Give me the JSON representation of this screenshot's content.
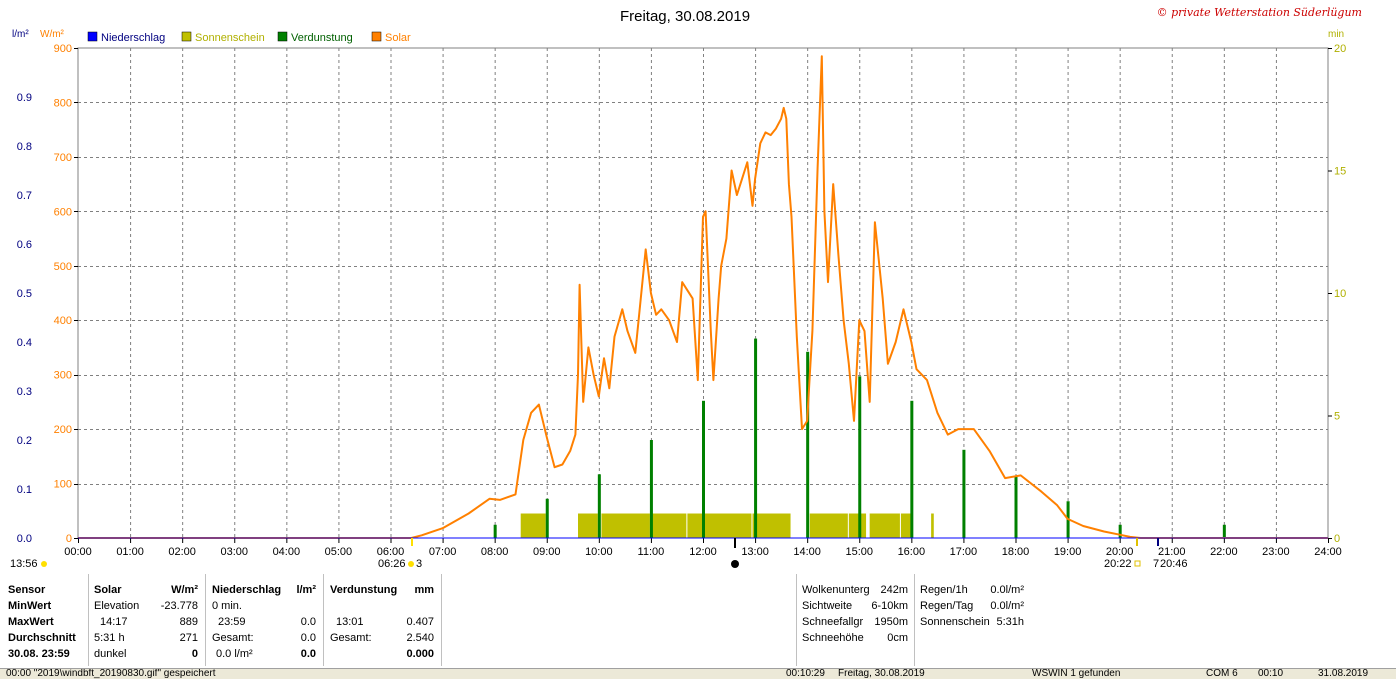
{
  "chart_data": {
    "type": "line",
    "title": "Freitag, 30.08.2019",
    "copyright": "© private Wetterstation Süderlügum",
    "left_axis_units": [
      "l/m²",
      "W/m²"
    ],
    "right_axis_unit": "min",
    "legend": [
      {
        "name": "Niederschlag",
        "color": "#0000ff"
      },
      {
        "name": "Sonnenschein",
        "color": "#c0c000"
      },
      {
        "name": "Verdunstung",
        "color": "#008000"
      },
      {
        "name": "Solar",
        "color": "#ff8000"
      }
    ],
    "x_ticks": [
      "00:00",
      "01:00",
      "02:00",
      "03:00",
      "04:00",
      "05:00",
      "06:00",
      "07:00",
      "08:00",
      "09:00",
      "10:00",
      "11:00",
      "12:00",
      "13:00",
      "14:00",
      "15:00",
      "16:00",
      "17:00",
      "18:00",
      "19:00",
      "20:00",
      "21:00",
      "22:00",
      "23:00",
      "24:00"
    ],
    "solar_ylim": [
      0,
      900
    ],
    "solar_ticks": [
      "0",
      "100",
      "200",
      "300",
      "400",
      "500",
      "600",
      "700",
      "800",
      "900"
    ],
    "precip_ylim": [
      0,
      1.0
    ],
    "precip_ticks": [
      "0.0",
      "0.1",
      "0.2",
      "0.3",
      "0.4",
      "0.5",
      "0.6",
      "0.7",
      "0.8",
      "0.9"
    ],
    "sun_ylim": [
      0,
      20
    ],
    "sun_ticks": [
      "0",
      "5",
      "10",
      "15",
      "20"
    ],
    "solar_series": {
      "name": "Solar",
      "color": "#ff8000",
      "points": [
        [
          0,
          0
        ],
        [
          6.4,
          0
        ],
        [
          6.6,
          5
        ],
        [
          7.0,
          18
        ],
        [
          7.5,
          45
        ],
        [
          7.9,
          72
        ],
        [
          8.1,
          70
        ],
        [
          8.4,
          80
        ],
        [
          8.55,
          180
        ],
        [
          8.7,
          230
        ],
        [
          8.85,
          245
        ],
        [
          9.0,
          185
        ],
        [
          9.15,
          130
        ],
        [
          9.3,
          135
        ],
        [
          9.45,
          160
        ],
        [
          9.55,
          190
        ],
        [
          9.6,
          300
        ],
        [
          9.63,
          465
        ],
        [
          9.7,
          250
        ],
        [
          9.8,
          350
        ],
        [
          9.9,
          300
        ],
        [
          10.0,
          260
        ],
        [
          10.1,
          330
        ],
        [
          10.2,
          275
        ],
        [
          10.3,
          370
        ],
        [
          10.45,
          420
        ],
        [
          10.55,
          380
        ],
        [
          10.7,
          340
        ],
        [
          10.9,
          530
        ],
        [
          11.0,
          450
        ],
        [
          11.1,
          410
        ],
        [
          11.2,
          420
        ],
        [
          11.35,
          400
        ],
        [
          11.5,
          360
        ],
        [
          11.6,
          470
        ],
        [
          11.7,
          455
        ],
        [
          11.8,
          440
        ],
        [
          11.9,
          290
        ],
        [
          12.0,
          590
        ],
        [
          12.05,
          600
        ],
        [
          12.15,
          380
        ],
        [
          12.2,
          290
        ],
        [
          12.3,
          440
        ],
        [
          12.35,
          500
        ],
        [
          12.45,
          550
        ],
        [
          12.55,
          675
        ],
        [
          12.65,
          630
        ],
        [
          12.75,
          660
        ],
        [
          12.85,
          690
        ],
        [
          12.95,
          610
        ],
        [
          13.0,
          660
        ],
        [
          13.1,
          725
        ],
        [
          13.2,
          745
        ],
        [
          13.3,
          740
        ],
        [
          13.4,
          752
        ],
        [
          13.5,
          770
        ],
        [
          13.55,
          790
        ],
        [
          13.6,
          770
        ],
        [
          13.65,
          650
        ],
        [
          13.7,
          590
        ],
        [
          13.8,
          370
        ],
        [
          13.9,
          200
        ],
        [
          14.0,
          215
        ],
        [
          14.05,
          300
        ],
        [
          14.1,
          380
        ],
        [
          14.2,
          680
        ],
        [
          14.28,
          885
        ],
        [
          14.33,
          600
        ],
        [
          14.4,
          470
        ],
        [
          14.5,
          650
        ],
        [
          14.6,
          520
        ],
        [
          14.7,
          400
        ],
        [
          14.8,
          320
        ],
        [
          14.9,
          215
        ],
        [
          15.0,
          400
        ],
        [
          15.1,
          380
        ],
        [
          15.2,
          250
        ],
        [
          15.3,
          580
        ],
        [
          15.45,
          440
        ],
        [
          15.55,
          320
        ],
        [
          15.7,
          360
        ],
        [
          15.85,
          420
        ],
        [
          16.0,
          360
        ],
        [
          16.1,
          310
        ],
        [
          16.3,
          290
        ],
        [
          16.5,
          230
        ],
        [
          16.7,
          190
        ],
        [
          16.9,
          200
        ],
        [
          17.2,
          200
        ],
        [
          17.5,
          160
        ],
        [
          17.8,
          110
        ],
        [
          18.1,
          115
        ],
        [
          18.5,
          85
        ],
        [
          18.8,
          60
        ],
        [
          19.0,
          35
        ],
        [
          19.3,
          22
        ],
        [
          19.7,
          12
        ],
        [
          20.0,
          6
        ],
        [
          20.2,
          2
        ],
        [
          20.4,
          0
        ],
        [
          24,
          0
        ]
      ]
    },
    "evaporation_bars": [
      {
        "time": 8.0,
        "value": 0.027
      },
      {
        "time": 9.0,
        "value": 0.08
      },
      {
        "time": 10.0,
        "value": 0.13
      },
      {
        "time": 11.0,
        "value": 0.2
      },
      {
        "time": 12.0,
        "value": 0.28
      },
      {
        "time": 13.0,
        "value": 0.407
      },
      {
        "time": 14.0,
        "value": 0.38
      },
      {
        "time": 15.0,
        "value": 0.33
      },
      {
        "time": 16.0,
        "value": 0.28
      },
      {
        "time": 17.0,
        "value": 0.18
      },
      {
        "time": 18.0,
        "value": 0.125
      },
      {
        "time": 19.0,
        "value": 0.075
      },
      {
        "time": 20.0,
        "value": 0.027
      },
      {
        "time": 22.0,
        "value": 0.027
      }
    ],
    "sunshine_blocks": [
      {
        "start": 8.5,
        "end": 9.0
      },
      {
        "start": 9.6,
        "end": 10.0
      },
      {
        "start": 10.05,
        "end": 11.0
      },
      {
        "start": 11.0,
        "end": 11.7
      },
      {
        "start": 11.7,
        "end": 12.95
      },
      {
        "start": 12.95,
        "end": 13.7
      },
      {
        "start": 14.05,
        "end": 14.8
      },
      {
        "start": 14.8,
        "end": 15.15
      },
      {
        "start": 15.2,
        "end": 15.8
      },
      {
        "start": 15.8,
        "end": 16.05
      },
      {
        "start": 16.38,
        "end": 16.45
      }
    ],
    "sunshine_level": 1.0,
    "markers": {
      "left_time": "13:56",
      "sunrise": "06:26",
      "sunrise_suffix": "3",
      "sunset": "20:22",
      "night": "20:46",
      "night_prefix": "7"
    }
  },
  "table": {
    "sensor": {
      "header": "Sensor",
      "rows": [
        "MinWert",
        "MaxWert",
        "Durchschnitt",
        "30.08. 23:59"
      ]
    },
    "solar": {
      "header": "Solar",
      "unit": "W/m²",
      "rows": [
        [
          "Elevation",
          "-23.778"
        ],
        [
          "14:17",
          "889"
        ],
        [
          "5:31 h",
          "271"
        ],
        [
          "dunkel",
          "0"
        ]
      ]
    },
    "precip": {
      "header": "Niederschlag",
      "unit": "l/m²",
      "rows": [
        [
          "0 min.",
          ""
        ],
        [
          "23:59",
          "0.0"
        ],
        [
          "Gesamt:",
          "0.0"
        ],
        [
          "0.0 l/m²",
          "0.0"
        ]
      ]
    },
    "evap": {
      "header": "Verdunstung",
      "unit": "mm",
      "rows": [
        [
          "",
          ""
        ],
        [
          "13:01",
          "0.407"
        ],
        [
          "Gesamt:",
          "2.540"
        ],
        [
          "",
          "0.000"
        ]
      ]
    },
    "clouds": [
      [
        "Wolkenunterg",
        "242m"
      ],
      [
        "Sichtweite",
        "6-10km"
      ],
      [
        "Schneefallgr",
        "1950m"
      ],
      [
        "Schneehöhe",
        "0cm"
      ]
    ],
    "rain": [
      [
        "Regen/1h",
        "0.0l/m²"
      ],
      [
        "Regen/Tag",
        "0.0l/m²"
      ],
      [
        "Sonnenschein",
        "5:31h"
      ]
    ]
  },
  "status": {
    "s1": "00:00 \"2019\\windbft_20190830.gif\" gespeichert",
    "s2": "00:10:29",
    "s3": "Freitag, 30.08.2019",
    "s4": "WSWIN 1 gefunden",
    "s5": "COM 6",
    "s6": "00:10",
    "s7": "31.08.2019"
  }
}
